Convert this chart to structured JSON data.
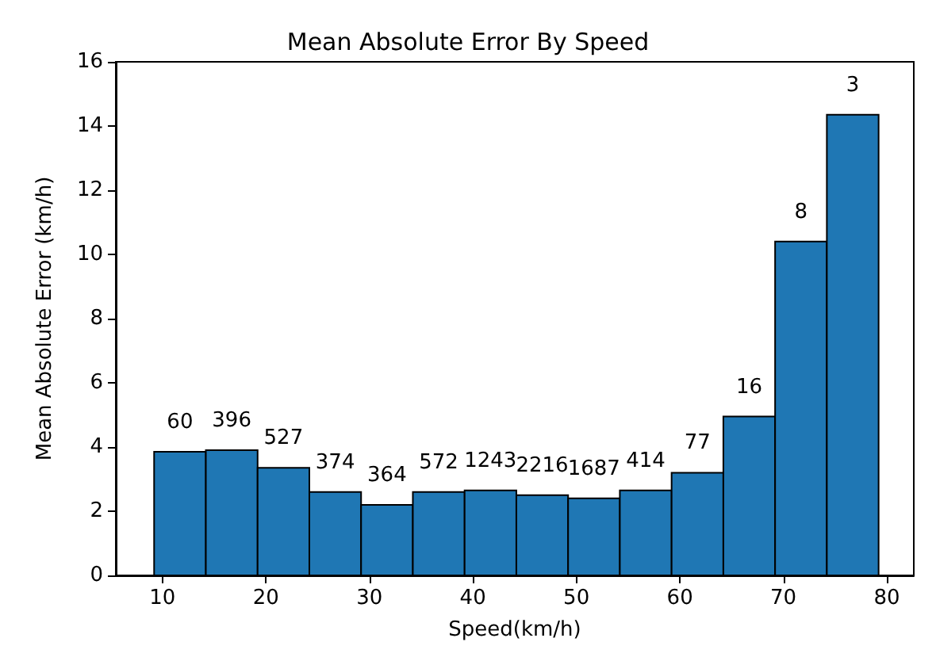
{
  "chart_data": {
    "type": "histogram",
    "title": "Mean Absolute Error By Speed",
    "xlabel": "Speed(km/h)",
    "ylabel": "Mean Absolute Error (km/h)",
    "bins": [
      9.2,
      14.2,
      19.2,
      24.2,
      29.2,
      34.2,
      39.2,
      44.2,
      49.2,
      54.2,
      59.2,
      64.2,
      69.2,
      74.2,
      79.2
    ],
    "values": [
      3.85,
      3.9,
      3.35,
      2.6,
      2.2,
      2.6,
      2.65,
      2.5,
      2.4,
      2.65,
      3.2,
      4.95,
      10.4,
      14.35
    ],
    "annotations": [
      {
        "text": "60",
        "x": 11.7,
        "y": 3.85
      },
      {
        "text": "396",
        "x": 16.7,
        "y": 3.9
      },
      {
        "text": "527",
        "x": 21.7,
        "y": 3.35
      },
      {
        "text": "374",
        "x": 26.7,
        "y": 2.6
      },
      {
        "text": "364",
        "x": 31.7,
        "y": 2.2
      },
      {
        "text": "572",
        "x": 36.7,
        "y": 2.6
      },
      {
        "text": "1243",
        "x": 41.7,
        "y": 2.65
      },
      {
        "text": "2216",
        "x": 46.7,
        "y": 2.5
      },
      {
        "text": "1687",
        "x": 51.7,
        "y": 2.4
      },
      {
        "text": "414",
        "x": 56.7,
        "y": 2.65
      },
      {
        "text": "77",
        "x": 61.7,
        "y": 3.2
      },
      {
        "text": "16",
        "x": 66.7,
        "y": 4.95
      },
      {
        "text": "8",
        "x": 71.7,
        "y": 10.4
      },
      {
        "text": "3",
        "x": 76.7,
        "y": 14.35
      }
    ],
    "color": "#1f77b4",
    "xlim": [
      5.5,
      82.6
    ],
    "xticks": [
      10,
      20,
      30,
      40,
      50,
      60,
      70,
      80
    ],
    "ylim": [
      0,
      16
    ],
    "yticks": [
      0,
      2,
      4,
      6,
      8,
      10,
      12,
      14,
      16
    ],
    "grid": false
  }
}
